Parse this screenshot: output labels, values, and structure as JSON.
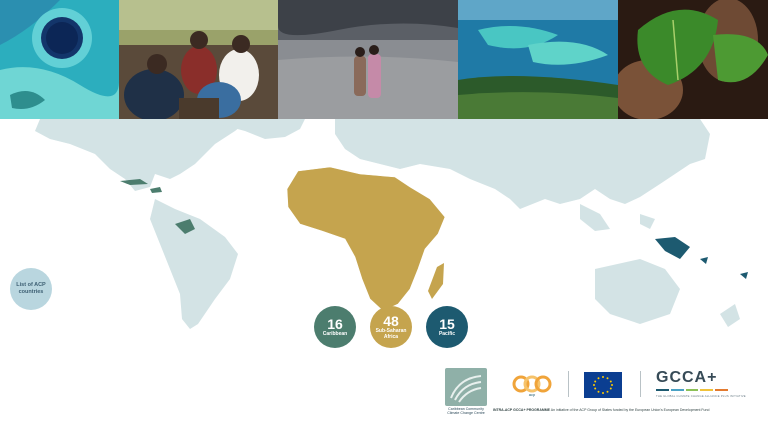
{
  "list_button": {
    "line1": "List of ACP",
    "line2": "countries"
  },
  "stats": {
    "caribbean": {
      "number": "16",
      "label": "Caribbean"
    },
    "africa": {
      "number": "48",
      "label_line1": "Sub-Saharan",
      "label_line2": "Africa"
    },
    "pacific": {
      "number": "15",
      "label": "Pacific"
    }
  },
  "footer": {
    "cccc_line1": "Caribbean Community",
    "cccc_line2": "Climate Change Centre",
    "acp_text": "acp",
    "gcca_title": "GCCA+",
    "gcca_sub": "THE GLOBAL CLIMATE CHANGE ALLIANCE PLUS INITIATIVE",
    "credit_bold": "INTRA-ACP GCCA+ PROGRAMME",
    "credit_rest": " An initiative of the ACP Group of States funded by the European Union's European Development Fund"
  },
  "colors": {
    "map_land": "#d3e3e5",
    "africa": "#c5a44e",
    "caribbean": "#4c7d6e",
    "pacific": "#1d5a70",
    "list_button": "#b9d6df"
  },
  "icons": {
    "cccc": "cccc-logo-icon",
    "acp": "acp-logo-icon",
    "eu": "eu-flag-icon",
    "gcca": "gcca-logo-icon"
  }
}
